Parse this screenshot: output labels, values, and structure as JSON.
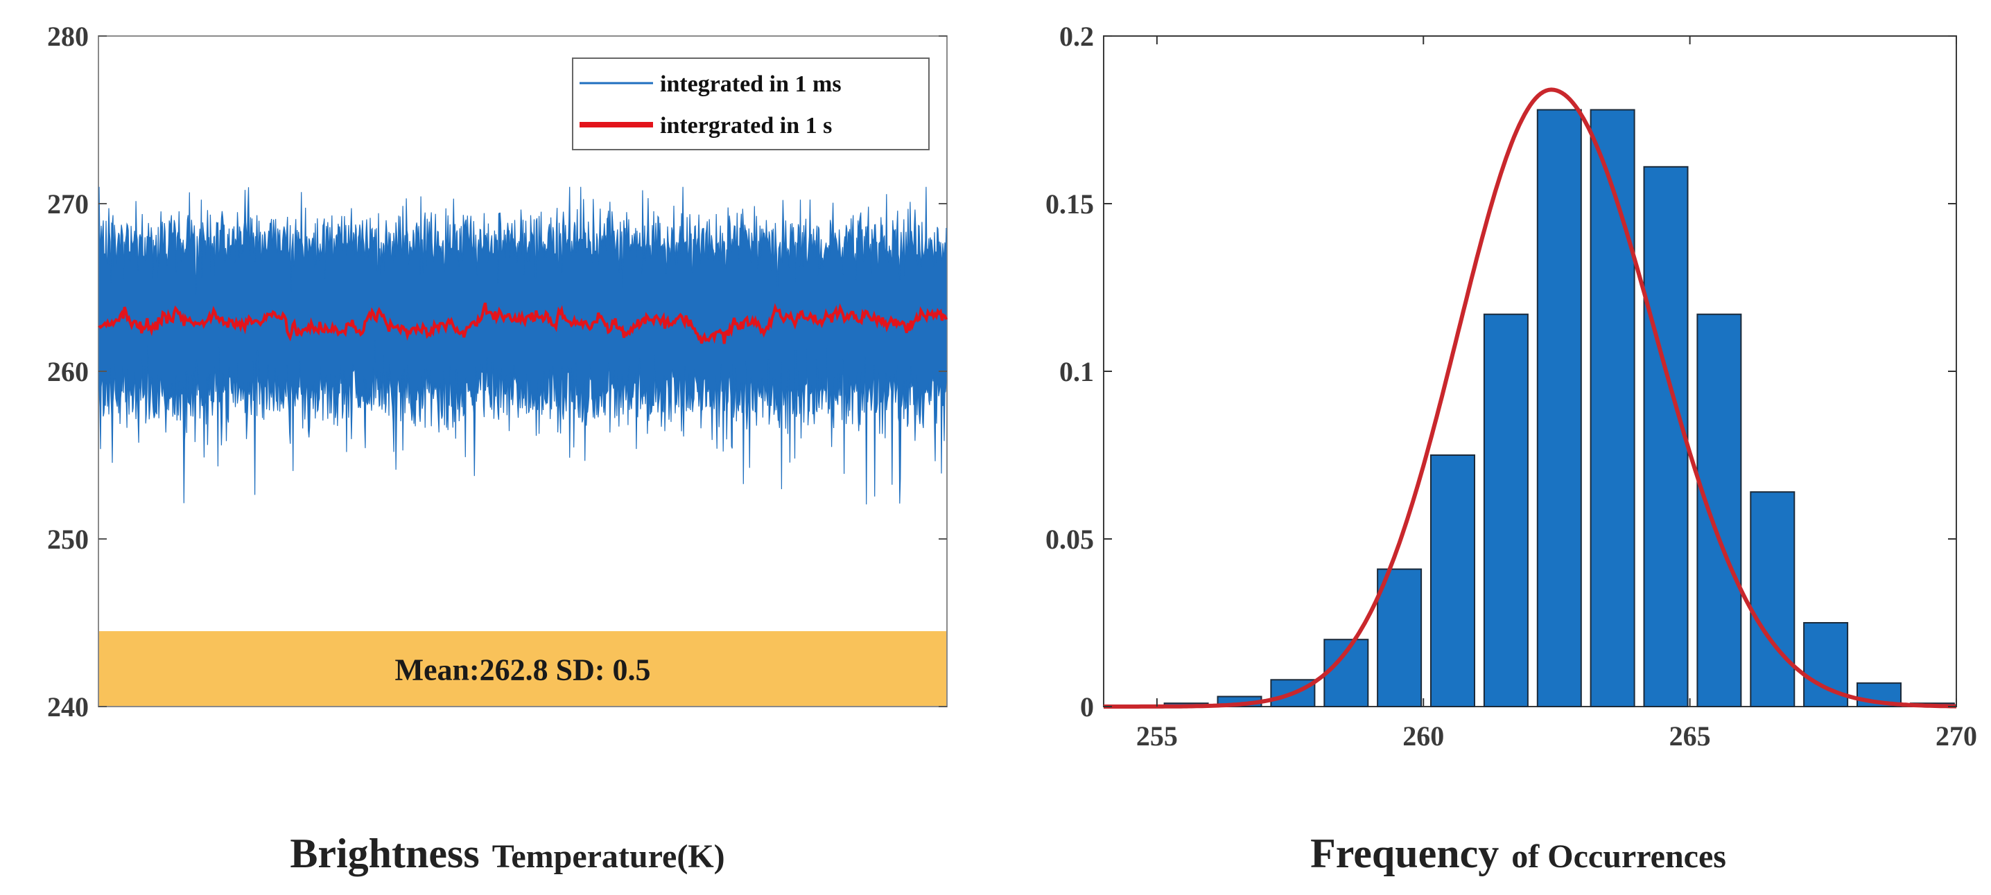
{
  "colors": {
    "raw_series": "#1f6fbf",
    "smooth_series": "#e3141b",
    "bars": "#1a73c2",
    "fit_curve": "#c9272c",
    "stats_band": "#f9c25a"
  },
  "chart_data": [
    {
      "type": "line",
      "ylim": [
        240,
        280
      ],
      "yticks": [
        "240",
        "250",
        "260",
        "270",
        "280"
      ],
      "xticks": [],
      "grid": false,
      "legend_position": "top-right",
      "series": [
        {
          "name": "integrated in 1 ms",
          "mean": 262.8,
          "typical_range": [
            258,
            268
          ],
          "extremes": [
            250,
            271
          ]
        },
        {
          "name": "intergrated in 1 s",
          "mean": 262.8,
          "sd": 0.5
        }
      ],
      "stats_band": {
        "text": "Mean:262.8  SD: 0.5",
        "y_range": [
          240,
          244.5
        ]
      },
      "caption": {
        "bold": "Brightness",
        "rest": "Temperature(K)"
      }
    },
    {
      "type": "bar",
      "xlim": [
        254,
        270
      ],
      "ylim": [
        0,
        0.2
      ],
      "xticks": [
        "255",
        "260",
        "265",
        "270"
      ],
      "yticks": [
        "0",
        "0.05",
        "0.1",
        "0.15",
        "0.2"
      ],
      "grid": false,
      "x": [
        254,
        255,
        256,
        257,
        258,
        259,
        260,
        261,
        262,
        263,
        264,
        265,
        266,
        267,
        268,
        269
      ],
      "values": [
        0.0,
        0.001,
        0.003,
        0.008,
        0.02,
        0.041,
        0.075,
        0.117,
        0.178,
        0.178,
        0.161,
        0.117,
        0.064,
        0.025,
        0.007,
        0.001
      ],
      "fit_curve": {
        "type": "normal-fit",
        "peak_x": 262.4,
        "peak_y": 0.184
      },
      "caption": {
        "bold": "Frequency",
        "rest": "of Occurrences"
      }
    }
  ]
}
